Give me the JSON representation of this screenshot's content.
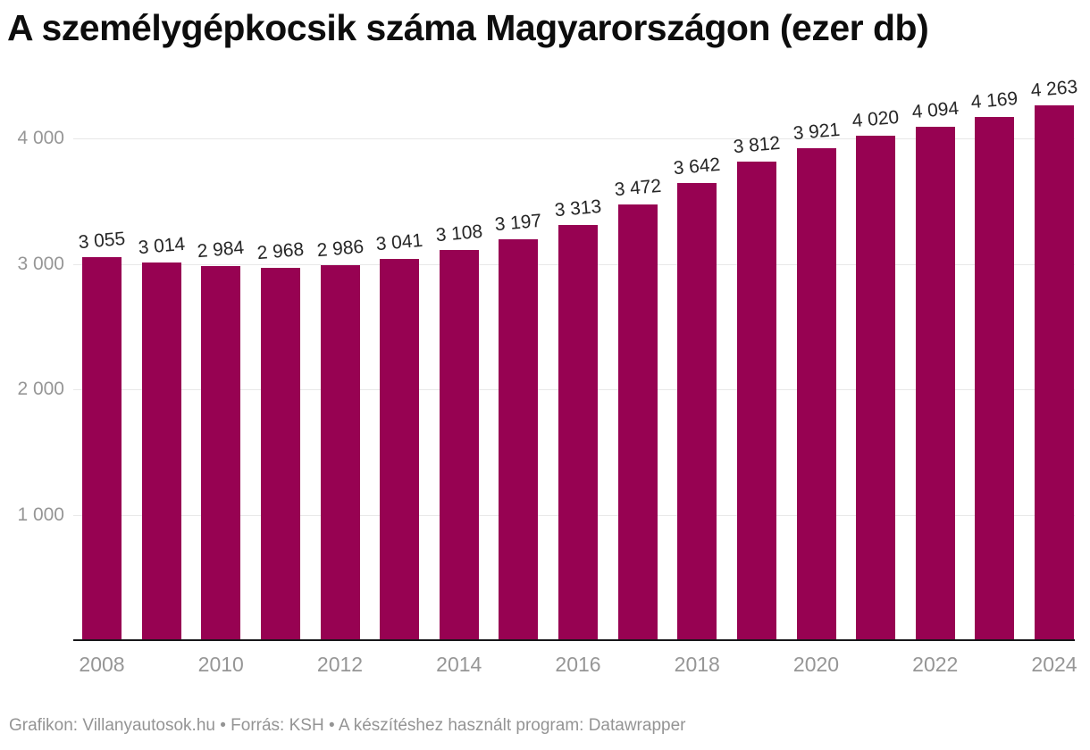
{
  "title": "A személygépkocsik száma Magyarországon (ezer db)",
  "footer": "Grafikon: Villanyautosok.hu • Forrás: KSH • A készítéshez használt program: Datawrapper",
  "colors": {
    "bar": "#970252",
    "title": "#0d0d0d",
    "value_label": "#262626",
    "axis_label": "#969696",
    "gridline": "#e8e8e8",
    "baseline": "#18181a",
    "footer": "#949494",
    "background": "#ffffff"
  },
  "chart_data": {
    "type": "bar",
    "title": "A személygépkocsik száma Magyarországon (ezer db)",
    "categories": [
      "2008",
      "2009",
      "2010",
      "2011",
      "2012",
      "2013",
      "2014",
      "2015",
      "2016",
      "2017",
      "2018",
      "2019",
      "2020",
      "2021",
      "2022",
      "2023",
      "2024"
    ],
    "values": [
      3055,
      3014,
      2984,
      2968,
      2986,
      3041,
      3108,
      3197,
      3313,
      3472,
      3642,
      3812,
      3921,
      4020,
      4094,
      4169,
      4263
    ],
    "value_labels": [
      "3 055",
      "3 014",
      "2 984",
      "2 968",
      "2 986",
      "3 041",
      "3 108",
      "3 197",
      "3 313",
      "3 472",
      "3 642",
      "3 812",
      "3 921",
      "4 020",
      "4 094",
      "4 169",
      "4 263"
    ],
    "xlabel": "",
    "ylabel": "",
    "ylim": [
      0,
      4300
    ],
    "yticks": [
      1000,
      2000,
      3000,
      4000
    ],
    "ytick_labels": [
      "1 000",
      "2 000",
      "3 000",
      "4 000"
    ],
    "xtick_labels": [
      "2008",
      "2010",
      "2012",
      "2014",
      "2016",
      "2018",
      "2020",
      "2022",
      "2024"
    ],
    "xtick_every_n_bars": 2,
    "grid": "horizontal",
    "legend": "none",
    "value_label_rotation_deg": -5
  }
}
